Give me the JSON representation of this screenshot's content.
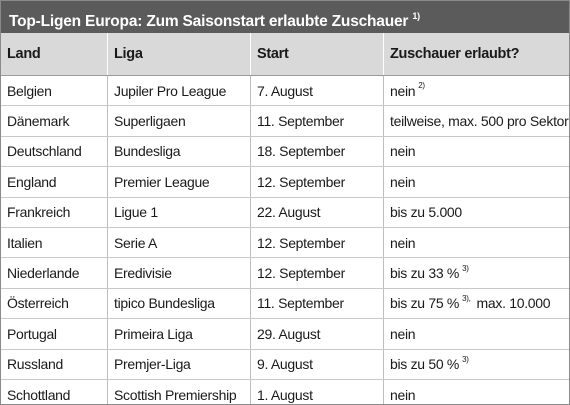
{
  "title": {
    "text": "Top-Ligen Europa: Zum Saisonstart erlaubte Zuschauer",
    "note": "1)"
  },
  "headers": [
    "Land",
    "Liga",
    "Start",
    "Zuschauer erlaubt?"
  ],
  "rows": [
    {
      "land": "Belgien",
      "liga": "Jupiler Pro League",
      "start": "7. August",
      "zuschauer": "nein",
      "note": "2)",
      "extra": ""
    },
    {
      "land": "Dänemark",
      "liga": "Superligaen",
      "start": "11. September",
      "zuschauer": "teilweise, max. 500 pro Sektor",
      "note": "",
      "extra": ""
    },
    {
      "land": "Deutschland",
      "liga": "Bundesliga",
      "start": "18. September",
      "zuschauer": "nein",
      "note": "",
      "extra": ""
    },
    {
      "land": "England",
      "liga": "Premier League",
      "start": "12. September",
      "zuschauer": "nein",
      "note": "",
      "extra": ""
    },
    {
      "land": "Frankreich",
      "liga": "Ligue 1",
      "start": "22. August",
      "zuschauer": "bis zu 5.000",
      "note": "",
      "extra": ""
    },
    {
      "land": "Italien",
      "liga": "Serie A",
      "start": "12. September",
      "zuschauer": "nein",
      "note": "",
      "extra": ""
    },
    {
      "land": "Niederlande",
      "liga": "Eredivisie",
      "start": "12. September",
      "zuschauer": "bis zu 33 %",
      "note": "3)",
      "extra": ""
    },
    {
      "land": "Österreich",
      "liga": "tipico Bundesliga",
      "start": "11. September",
      "zuschauer": "bis zu 75 %",
      "note": "3),",
      "extra": "max. 10.000"
    },
    {
      "land": "Portugal",
      "liga": "Primeira Liga",
      "start": "29. August",
      "zuschauer": "nein",
      "note": "",
      "extra": ""
    },
    {
      "land": "Russland",
      "liga": "Premjer-Liga",
      "start": "9. August",
      "zuschauer": "bis zu 50 %",
      "note": "3)",
      "extra": ""
    },
    {
      "land": "Schottland",
      "liga": "Scottish Premiership",
      "start": "1. August",
      "zuschauer": "nein",
      "note": "",
      "extra": ""
    }
  ],
  "colors": {
    "title_bg": "#5b5b5b",
    "header_bg": "#d9d9d9",
    "grid": "#c8c8c8"
  }
}
